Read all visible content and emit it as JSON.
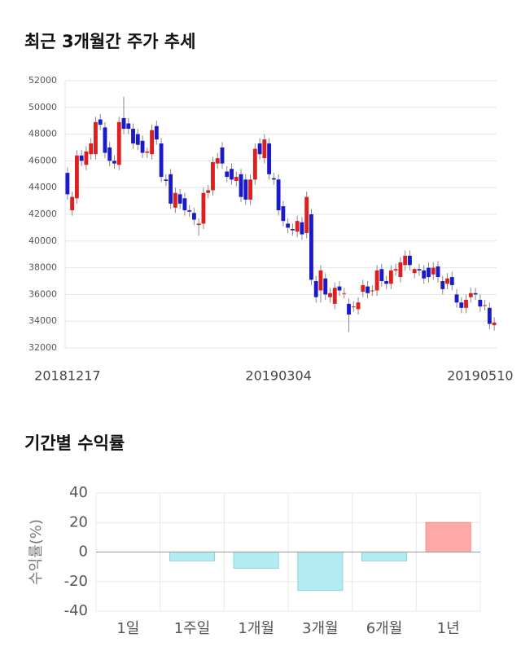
{
  "chart_data": [
    {
      "type": "candlestick",
      "title": "최근 3개월간 주가 추세",
      "categories": [
        "20181217",
        null,
        null,
        null,
        null,
        null,
        null,
        null,
        null,
        null,
        null,
        null,
        null,
        null,
        null,
        null,
        null,
        null,
        null,
        null,
        null,
        null,
        null,
        null,
        null,
        null,
        null,
        null,
        null,
        null,
        null,
        null,
        null,
        null,
        null,
        null,
        null,
        null,
        null,
        null,
        null,
        null,
        null,
        null,
        null,
        "20190304",
        null,
        null,
        null,
        null,
        null,
        null,
        null,
        null,
        null,
        null,
        null,
        null,
        null,
        null,
        null,
        null,
        null,
        null,
        null,
        null,
        null,
        null,
        null,
        null,
        null,
        null,
        null,
        null,
        null,
        null,
        null,
        null,
        null,
        null,
        null,
        null,
        null,
        null,
        null,
        null,
        null,
        null,
        "20190510",
        null,
        null,
        null
      ],
      "open": [
        45100,
        42300,
        43200,
        46400,
        45700,
        46500,
        46500,
        49100,
        48500,
        47000,
        46000,
        45700,
        49200,
        48800,
        48400,
        48000,
        47500,
        46600,
        46500,
        48600,
        47300,
        44600,
        45000,
        42500,
        43500,
        43200,
        42300,
        42100,
        41200,
        41300,
        43600,
        43800,
        45800,
        47000,
        45200,
        45400,
        44500,
        45000,
        44600,
        43100,
        44600,
        47300,
        46200,
        47300,
        44700,
        44600,
        42600,
        41300,
        40900,
        40700,
        41400,
        40600,
        42000,
        37000,
        36300,
        37200,
        35800,
        35300,
        36600,
        36100,
        35300,
        35100,
        34900,
        36200,
        36600,
        36300,
        36300,
        37900,
        37000,
        36800,
        37800,
        37300,
        38200,
        38900,
        37600,
        37900,
        37800,
        38000,
        37500,
        38100,
        37000,
        36800,
        37300,
        36000,
        35400,
        35000,
        35800,
        36100,
        35600,
        35200,
        35000,
        33700
      ],
      "high": [
        45500,
        43700,
        46800,
        46800,
        47100,
        47700,
        49300,
        49500,
        48900,
        47400,
        46400,
        49300,
        50800,
        49200,
        48800,
        48400,
        47900,
        47000,
        48700,
        49000,
        47700,
        45000,
        45400,
        44000,
        43900,
        43600,
        42700,
        42500,
        41700,
        44000,
        44200,
        46300,
        46600,
        47400,
        45600,
        45800,
        45200,
        45400,
        45000,
        45000,
        47300,
        47700,
        48000,
        47700,
        45100,
        45000,
        43000,
        41700,
        41300,
        41900,
        41800,
        43700,
        42400,
        37400,
        38200,
        37600,
        36500,
        36900,
        37000,
        36500,
        35700,
        35500,
        35800,
        37100,
        37000,
        36700,
        38200,
        38300,
        37400,
        38200,
        38300,
        38800,
        39300,
        39300,
        38000,
        38300,
        38200,
        38400,
        38400,
        38500,
        37400,
        37600,
        37700,
        36400,
        35800,
        36000,
        36500,
        36500,
        36000,
        35600,
        35400,
        34300
      ],
      "low": [
        43100,
        41900,
        42800,
        45600,
        45300,
        46100,
        46100,
        48300,
        46200,
        45600,
        45400,
        45300,
        48000,
        48000,
        46900,
        46800,
        46200,
        46200,
        46100,
        47200,
        44400,
        44100,
        42400,
        42100,
        42400,
        41900,
        41800,
        41200,
        40400,
        40900,
        43200,
        43400,
        45400,
        45400,
        44400,
        44200,
        44100,
        42900,
        42700,
        42700,
        44200,
        46100,
        45800,
        44600,
        44200,
        41900,
        41100,
        40600,
        40400,
        40300,
        40100,
        40200,
        36700,
        35400,
        35400,
        35600,
        35400,
        34900,
        35900,
        35700,
        33200,
        34700,
        34500,
        35800,
        35700,
        35900,
        35900,
        36600,
        36400,
        36400,
        37400,
        36900,
        37800,
        37800,
        37200,
        37400,
        36800,
        36900,
        37100,
        36900,
        36000,
        36400,
        36300,
        35000,
        34600,
        34600,
        35400,
        35600,
        34700,
        34800,
        33400,
        33300
      ],
      "close": [
        43500,
        43300,
        46400,
        46000,
        46700,
        47300,
        48900,
        48700,
        46600,
        46000,
        45800,
        48900,
        48400,
        48400,
        47300,
        47200,
        46600,
        46700,
        48300,
        47600,
        44800,
        44500,
        42800,
        43600,
        42800,
        42300,
        42200,
        41600,
        41300,
        43600,
        43800,
        45900,
        46200,
        45800,
        44800,
        44600,
        44800,
        43300,
        43100,
        44600,
        46900,
        46500,
        47600,
        45000,
        44600,
        42300,
        41500,
        41000,
        40800,
        41500,
        40500,
        43300,
        37100,
        35800,
        37800,
        36000,
        36100,
        36500,
        36300,
        36100,
        34500,
        35100,
        35400,
        36700,
        36100,
        36300,
        37800,
        37000,
        36800,
        37800,
        37900,
        38400,
        38900,
        38200,
        37900,
        37800,
        37200,
        37300,
        38000,
        37300,
        36400,
        37200,
        36700,
        35400,
        35000,
        35600,
        36100,
        36000,
        35100,
        35200,
        33800,
        33900
      ],
      "up_color": "#dd1f1f",
      "down_color": "#1a1ac8",
      "ylim": [
        32000,
        52000
      ],
      "yticks": [
        32000,
        34000,
        36000,
        38000,
        40000,
        42000,
        44000,
        46000,
        48000,
        50000,
        52000
      ],
      "grid": true
    },
    {
      "type": "bar",
      "title": "기간별 수익률",
      "y_label": "수익률(%)",
      "categories": [
        "1일",
        "1주일",
        "1개월",
        "3개월",
        "6개월",
        "1년"
      ],
      "values": [
        0,
        -6,
        -11,
        -26,
        -6,
        20
      ],
      "pos_color": "#ffa8a8",
      "neg_color": "#b3ebf2",
      "ylim": [
        -40,
        40
      ],
      "yticks": [
        -40,
        -20,
        0,
        20,
        40
      ],
      "grid": true
    }
  ]
}
